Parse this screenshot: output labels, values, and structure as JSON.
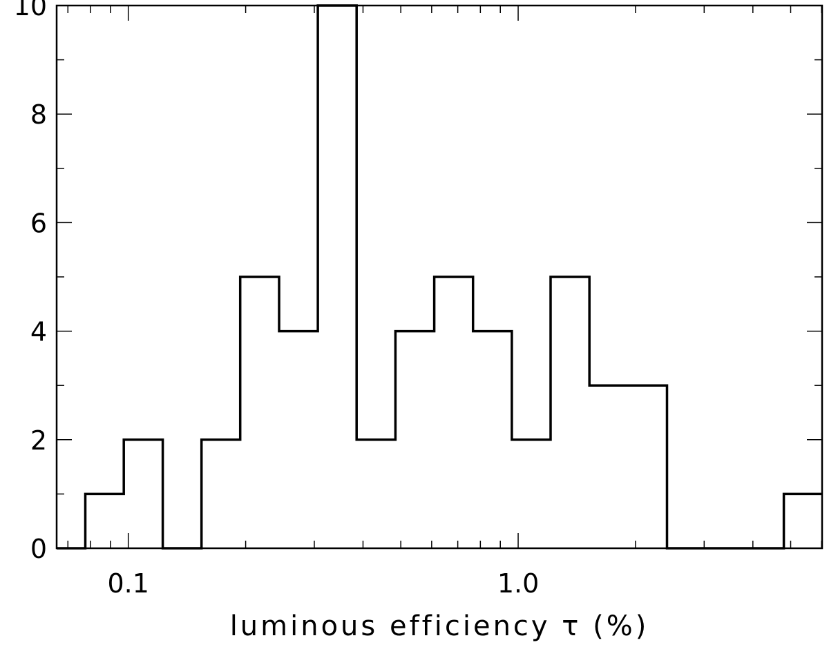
{
  "chart_data": {
    "type": "histogram",
    "title": "",
    "xlabel": "luminous efficiency τ (%)",
    "ylabel": "",
    "x_scale": "log",
    "xlim": [
      0.0655,
      6.02
    ],
    "ylim": [
      0,
      10
    ],
    "grid": false,
    "x_tick_labels": [
      {
        "value": 0.1,
        "label": "0.1"
      },
      {
        "value": 1.0,
        "label": "1.0"
      }
    ],
    "y_tick_labels": [
      {
        "value": 0,
        "label": "0"
      },
      {
        "value": 2,
        "label": "2"
      },
      {
        "value": 4,
        "label": "4"
      },
      {
        "value": 6,
        "label": "6"
      },
      {
        "value": 8,
        "label": "8"
      },
      {
        "value": 10,
        "label": "10"
      }
    ],
    "bin_edges": [
      0.0655,
      0.0776,
      0.0974,
      0.1226,
      0.1541,
      0.1937,
      0.2437,
      0.3063,
      0.3852,
      0.4844,
      0.6092,
      0.766,
      0.9633,
      1.2114,
      1.5234,
      2.4088,
      4.8015,
      6.02
    ],
    "counts": [
      0,
      1,
      2,
      0,
      2,
      5,
      4,
      10,
      2,
      4,
      5,
      4,
      2,
      5,
      3,
      0,
      1
    ]
  }
}
